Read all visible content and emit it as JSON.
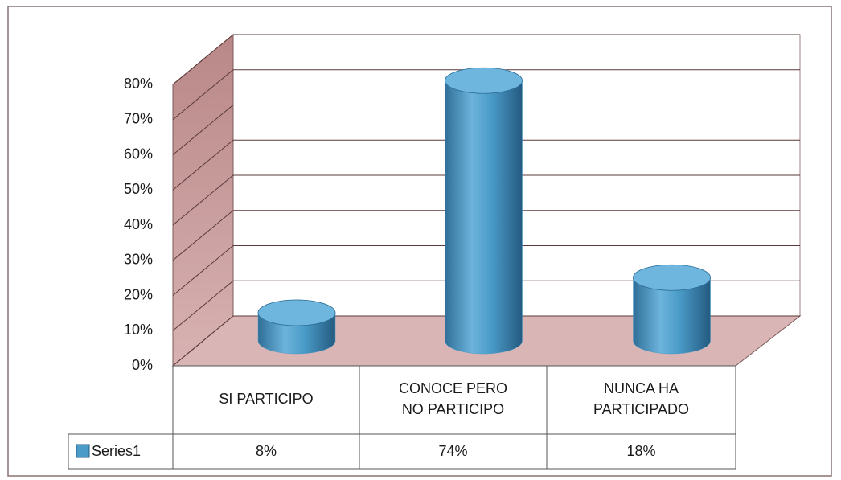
{
  "chart_data": {
    "type": "bar",
    "categories": [
      "SI PARTICIPO",
      "CONOCE PERO NO PARTICIPO",
      "NUNCA HA PARTICIPADO"
    ],
    "series": [
      {
        "name": "Series1",
        "color": "#4a9bc8",
        "values": [
          8,
          74,
          18
        ],
        "value_labels": [
          "8%",
          "74%",
          "18%"
        ]
      }
    ],
    "ylim": [
      0,
      80
    ],
    "yticks": [
      {
        "value": 0,
        "label": "0%"
      },
      {
        "value": 10,
        "label": "10%"
      },
      {
        "value": 20,
        "label": "20%"
      },
      {
        "value": 30,
        "label": "30%"
      },
      {
        "value": 40,
        "label": "40%"
      },
      {
        "value": 50,
        "label": "50%"
      },
      {
        "value": 60,
        "label": "60%"
      },
      {
        "value": 70,
        "label": "70%"
      },
      {
        "value": 80,
        "label": "80%"
      }
    ],
    "grid": true
  }
}
